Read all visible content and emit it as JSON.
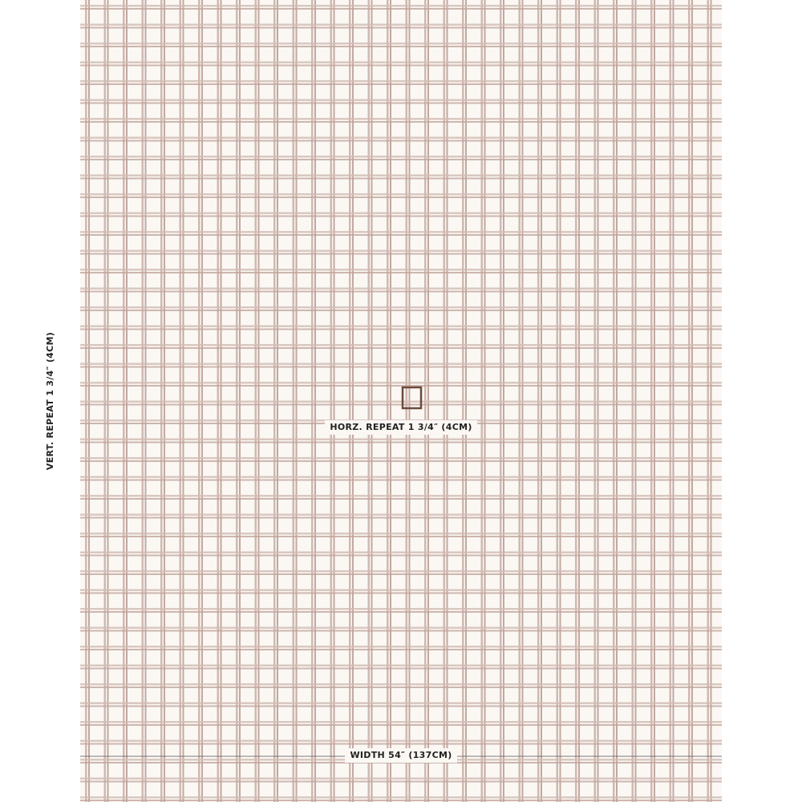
{
  "labels": {
    "vertical_repeat": "VERT. REPEAT  1 3/4″ (4CM)",
    "horizontal_repeat": "HORZ. REPEAT 1 3/4″ (4CM)",
    "width": "WIDTH 54″ (137CM)"
  }
}
